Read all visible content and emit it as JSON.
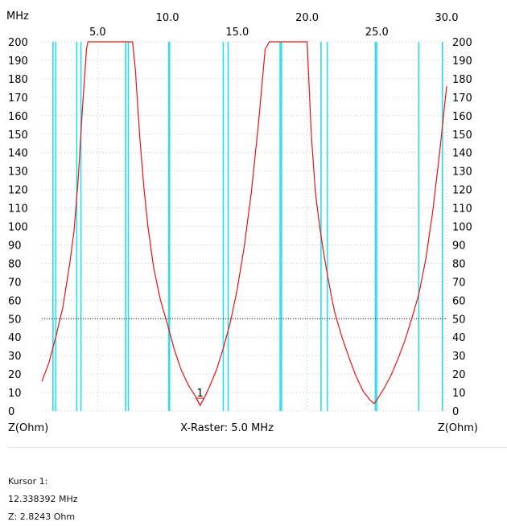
{
  "header": {
    "unit_label": "MHz"
  },
  "axis": {
    "left_label": "Z(Ohm)",
    "right_label": "Z(Ohm)",
    "raster_label": "X-Raster: 5.0 MHz"
  },
  "colors": {
    "trace": "#ee1111",
    "markers": "#27dcf0",
    "reference_line": "#000000",
    "grid": "#bbbbbb"
  },
  "cursor": {
    "title": "Kursor 1:",
    "frequency": "12.338392 MHz",
    "impedance": "Z: 2.8243 Ohm",
    "marker_label": "1"
  },
  "chart_data": {
    "type": "line",
    "title": "",
    "xlabel": "X-Raster: 5.0 MHz",
    "ylabel": "Z(Ohm)",
    "xlim": [
      1.0,
      30.0
    ],
    "ylim": [
      0,
      200
    ],
    "y_ticks": [
      0,
      10,
      20,
      30,
      40,
      50,
      60,
      70,
      80,
      90,
      100,
      110,
      120,
      130,
      140,
      150,
      160,
      170,
      180,
      190,
      200
    ],
    "x_ticks_top_row": [
      "10.0",
      "20.0",
      "30.0"
    ],
    "x_ticks_top_row_values": [
      10.0,
      20.0,
      30.0
    ],
    "x_ticks_second_row": [
      "5.0",
      "15.0",
      "25.0"
    ],
    "x_ticks_second_row_values": [
      5.0,
      15.0,
      25.0
    ],
    "reference_line_y": 50,
    "grid": true,
    "band_markers_mhz": [
      1.8,
      2.0,
      3.5,
      3.8,
      7.0,
      7.2,
      10.1,
      10.15,
      14.0,
      14.35,
      18.068,
      18.168,
      21.0,
      21.45,
      24.89,
      24.99,
      28.0,
      29.7
    ],
    "series": [
      {
        "x": [
          1.0,
          1.5,
          2.0,
          2.5,
          3.0,
          3.3,
          3.6,
          3.9,
          4.2,
          4.3,
          7.5,
          7.7,
          8.0,
          8.3,
          8.6,
          9.0,
          9.5,
          10.0,
          10.5,
          11.0,
          11.5,
          12.0,
          12.3384,
          12.7,
          13.0,
          13.5,
          14.0,
          14.5,
          15.0,
          15.5,
          16.0,
          16.5,
          17.0,
          17.3,
          17.4,
          20.0,
          20.3,
          20.6,
          20.9,
          21.2,
          21.5,
          21.8,
          22.0,
          22.5,
          23.0,
          23.5,
          24.0,
          24.5,
          24.8,
          25.0,
          25.5,
          26.0,
          26.5,
          27.0,
          27.5,
          28.0,
          28.5,
          29.0,
          29.5,
          30.0
        ],
        "y": [
          16,
          26,
          40,
          56,
          80,
          97,
          125,
          163,
          196,
          200,
          200,
          185,
          150,
          122,
          100,
          78,
          60,
          47,
          33,
          22,
          14,
          8,
          3,
          8,
          13,
          22,
          34,
          48,
          66,
          89,
          118,
          154,
          196,
          200,
          200,
          200,
          150,
          118,
          100,
          85,
          72,
          60,
          53,
          40,
          29,
          19,
          11,
          6,
          4,
          6,
          12,
          19,
          28,
          38,
          50,
          63,
          82,
          108,
          140,
          176
        ]
      }
    ]
  }
}
